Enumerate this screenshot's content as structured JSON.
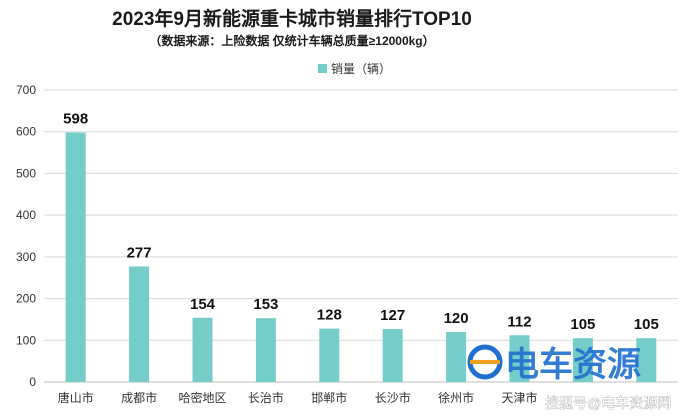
{
  "chart_data": {
    "type": "bar",
    "title": "2023年9月新能源重卡城市销量排行TOP10",
    "subtitle": "（数据来源：上险数据 仅统计车辆总质量≥12000kg）",
    "legend": [
      {
        "name": "销量（辆）",
        "color": "#74cdc9"
      }
    ],
    "legend_position": "top-center",
    "categories": [
      "唐山市",
      "成都市",
      "哈密地区",
      "长治市",
      "邯郸市",
      "长沙市",
      "徐州市",
      "天津市",
      "",
      ""
    ],
    "series": [
      {
        "name": "销量（辆）",
        "values": [
          598,
          277,
          154,
          153,
          128,
          127,
          120,
          112,
          105,
          105
        ]
      }
    ],
    "ylim": [
      0,
      700
    ],
    "yticks": [
      0,
      100,
      200,
      300,
      400,
      500,
      600,
      700
    ],
    "grid": true,
    "bar_color": "#74cdc9"
  },
  "watermarks": {
    "brand": "电车资源",
    "source": "搜狐号@电车资源网"
  }
}
